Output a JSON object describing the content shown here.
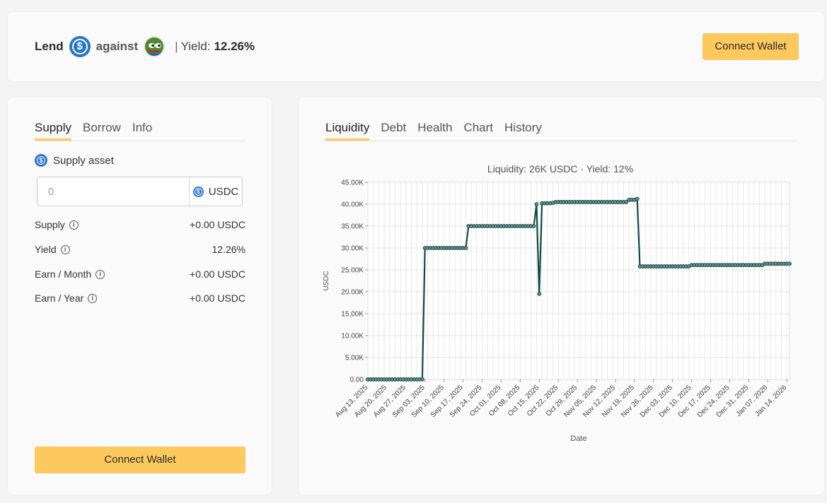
{
  "header": {
    "lend_label": "Lend",
    "lend_asset_icon": "usdc-icon",
    "against_label": "against",
    "collateral_icon": "pepe-icon",
    "separator": "|",
    "yield_label": "Yield:",
    "yield_value": "12.26%",
    "connect_label": "Connect Wallet"
  },
  "left_panel": {
    "tabs": [
      "Supply",
      "Borrow",
      "Info"
    ],
    "active_tab": "Supply",
    "supply_asset_label": "Supply asset",
    "amount": {
      "value": "",
      "placeholder": "0",
      "unit": "USDC"
    },
    "stats": [
      {
        "label": "Supply",
        "value": "+0.00 USDC"
      },
      {
        "label": "Yield",
        "value": "12.26%"
      },
      {
        "label": "Earn / Month",
        "value": "+0.00 USDC"
      },
      {
        "label": "Earn / Year",
        "value": "+0.00 USDC"
      }
    ],
    "connect_label": "Connect Wallet"
  },
  "right_panel": {
    "tabs": [
      "Liquidity",
      "Debt",
      "Health",
      "Chart",
      "History"
    ],
    "active_tab": "Liquidity"
  },
  "colors": {
    "accent": "#fdc85e",
    "line": "#0e4a44",
    "usdc": "#2775ca"
  },
  "chart_data": {
    "type": "line",
    "title": "Liquidity: 26K USDC · Yield: 12%",
    "xlabel": "Date",
    "ylabel": "USDC",
    "ylim": [
      0,
      45000
    ],
    "yticks": [
      "0.00",
      "5.00K",
      "10.00K",
      "15.00K",
      "20.00K",
      "25.00K",
      "30.00K",
      "35.00K",
      "40.00K",
      "45.00K"
    ],
    "xticks": [
      "Aug 13, 2025",
      "Aug 20, 2025",
      "Aug 27, 2025",
      "Sep 03, 2025",
      "Sep 10, 2025",
      "Sep 17, 2025",
      "Sep 24, 2025",
      "Oct 01, 2025",
      "Oct 08, 2025",
      "Oct 15, 2025",
      "Oct 22, 2025",
      "Oct 29, 2025",
      "Nov 05, 2025",
      "Nov 12, 2025",
      "Nov 19, 2025",
      "Nov 26, 2025",
      "Dec 03, 2025",
      "Dec 10, 2025",
      "Dec 17, 2025",
      "Dec 24, 2025",
      "Dec 31, 2025",
      "Jan 07, 2026",
      "Jan 14, 2026"
    ],
    "grid": true,
    "series": [
      {
        "x": [
          "2025-08-13",
          "2025-09-02",
          "2025-09-03",
          "2025-09-18",
          "2025-09-19",
          "2025-10-13",
          "2025-10-14",
          "2025-10-15",
          "2025-10-16",
          "2025-10-20",
          "2025-10-21",
          "2025-11-16",
          "2025-11-17",
          "2025-11-20",
          "2025-11-21",
          "2025-12-09",
          "2025-12-10",
          "2026-01-05",
          "2026-01-06",
          "2026-01-15"
        ],
        "y": [
          0,
          0,
          30000,
          30000,
          35000,
          35000,
          40000,
          19500,
          40200,
          40300,
          40500,
          40500,
          41000,
          41200,
          25800,
          25800,
          26100,
          26100,
          26400,
          26400
        ]
      }
    ]
  }
}
